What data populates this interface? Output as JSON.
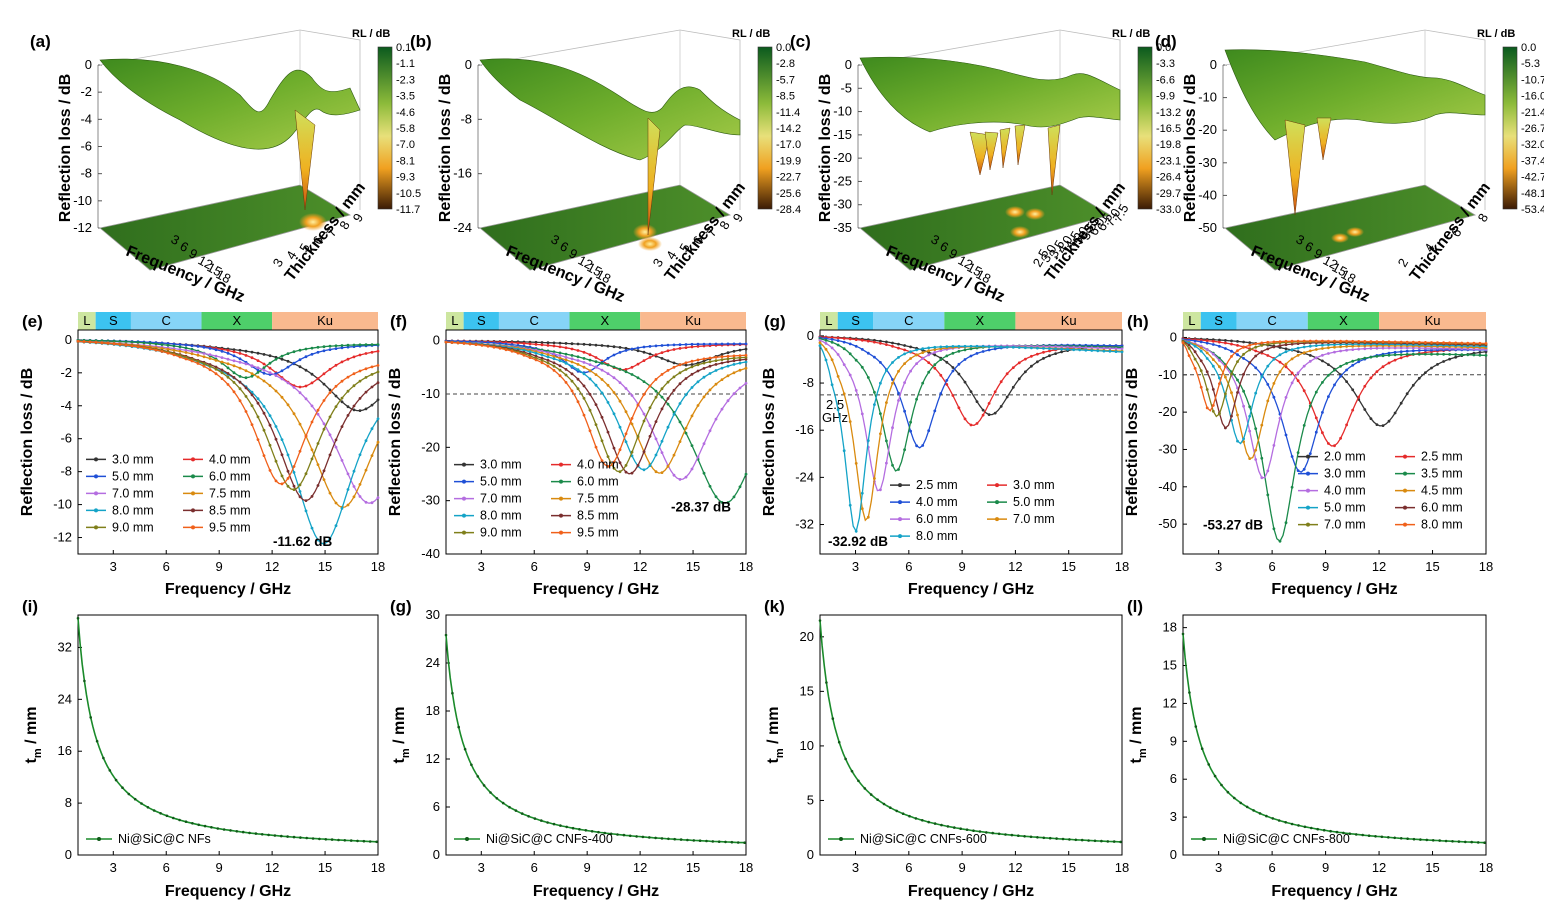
{
  "chart_data": [
    {
      "panel": "(a)",
      "type": "surface3d",
      "zlabel": "Reflection loss / dB",
      "xlabel": "Frequency / GHz",
      "ylabel": "Thickness / mm",
      "colorbar_title": "RL / dB",
      "colorbar_ticks": [
        "0.1",
        "-1.1",
        "-2.3",
        "-3.5",
        "-4.6",
        "-5.8",
        "-7.0",
        "-8.1",
        "-9.3",
        "-10.5",
        "-11.7"
      ],
      "z_ticks": [
        "0",
        "-2",
        "-4",
        "-6",
        "-8",
        "-10",
        "-12"
      ],
      "x_ticks": [
        "3",
        "6",
        "9",
        "12",
        "15",
        "18"
      ],
      "y_ticks": [
        "3",
        "4",
        "5",
        "6",
        "7",
        "8",
        "9"
      ],
      "min_rl": -11.62
    },
    {
      "panel": "(b)",
      "type": "surface3d",
      "zlabel": "Reflection loss / dB",
      "xlabel": "Frequency / GHz",
      "ylabel": "Thickness / mm",
      "colorbar_title": "RL / dB",
      "colorbar_ticks": [
        "0.0",
        "-2.8",
        "-5.7",
        "-8.5",
        "-11.4",
        "-14.2",
        "-17.0",
        "-19.9",
        "-22.7",
        "-25.6",
        "-28.4"
      ],
      "z_ticks": [
        "0",
        "-8",
        "-16",
        "-24"
      ],
      "x_ticks": [
        "3",
        "6",
        "9",
        "12",
        "15",
        "18"
      ],
      "y_ticks": [
        "3",
        "4",
        "5",
        "6",
        "7",
        "8",
        "9"
      ],
      "min_rl": -28.37
    },
    {
      "panel": "(c)",
      "type": "surface3d",
      "zlabel": "Reflection loss / dB",
      "xlabel": "Frequency / GHz",
      "ylabel": "Thickness / mm",
      "colorbar_title": "RL / dB",
      "colorbar_ticks": [
        "0.0",
        "-3.3",
        "-6.6",
        "-9.9",
        "-13.2",
        "-16.5",
        "-19.8",
        "-23.1",
        "-26.4",
        "-29.7",
        "-33.0"
      ],
      "z_ticks": [
        "0",
        "-5",
        "-10",
        "-15",
        "-20",
        "-25",
        "-30",
        "-35"
      ],
      "x_ticks": [
        "3",
        "6",
        "9",
        "12",
        "15",
        "18"
      ],
      "y_ticks": [
        "2.5",
        "3.0",
        "3.5",
        "4.0",
        "4.5",
        "5.0",
        "5.5",
        "6.0",
        "6.5",
        "7.0",
        "7.5"
      ],
      "min_rl": -32.92
    },
    {
      "panel": "(d)",
      "type": "surface3d",
      "zlabel": "Reflection loss / dB",
      "xlabel": "Frequency / GHz",
      "ylabel": "Thickness / mm",
      "colorbar_title": "RL / dB",
      "colorbar_ticks": [
        "0.0",
        "-5.3",
        "-10.7",
        "-16.0",
        "-21.4",
        "-26.7",
        "-32.0",
        "-37.4",
        "-42.7",
        "-48.1",
        "-53.4"
      ],
      "z_ticks": [
        "0",
        "-10",
        "-20",
        "-30",
        "-40",
        "-50"
      ],
      "x_ticks": [
        "3",
        "6",
        "9",
        "12",
        "15",
        "18"
      ],
      "y_ticks": [
        "2",
        "4",
        "6",
        "8"
      ],
      "min_rl": -53.27
    },
    {
      "panel": "(e)",
      "type": "line",
      "xlabel": "Frequency / GHz",
      "ylabel": "Reflection loss / dB",
      "xlim": [
        1,
        18
      ],
      "ylim": [
        -13,
        0.6
      ],
      "xticks": [
        3,
        6,
        9,
        12,
        15,
        18
      ],
      "yticks": [
        0,
        -2,
        -4,
        -6,
        -8,
        -10,
        -12
      ],
      "bands": [
        "L",
        "S",
        "C",
        "X",
        "Ku"
      ],
      "annotation": "-11.62 dB",
      "series": [
        {
          "name": "3.0 mm",
          "f0": 16.9,
          "depth": 4.0
        },
        {
          "name": "4.0 mm",
          "f0": 13.6,
          "depth": 2.7
        },
        {
          "name": "5.0 mm",
          "f0": 11.9,
          "depth": 2.0
        },
        {
          "name": "6.0 mm",
          "f0": 10.5,
          "depth": 2.2
        },
        {
          "name": "7.0 mm",
          "f0": 17.5,
          "depth": 9.2
        },
        {
          "name": "7.5 mm",
          "f0": 16.0,
          "depth": 9.5
        },
        {
          "name": "8.0 mm",
          "f0": 14.9,
          "depth": 11.62
        },
        {
          "name": "8.5 mm",
          "f0": 13.9,
          "depth": 9.2
        },
        {
          "name": "9.0 mm",
          "f0": 13.2,
          "depth": 8.6
        },
        {
          "name": "9.5 mm",
          "f0": 12.5,
          "depth": 8.3
        }
      ]
    },
    {
      "panel": "(f)",
      "type": "line",
      "xlabel": "Frequency / GHz",
      "ylabel": "Reflection loss / dB",
      "xlim": [
        1,
        18
      ],
      "ylim": [
        -40,
        2
      ],
      "xticks": [
        3,
        6,
        9,
        12,
        15,
        18
      ],
      "yticks": [
        0,
        -10,
        -20,
        -30,
        -40
      ],
      "bands": [
        "L",
        "S",
        "C",
        "X",
        "Ku"
      ],
      "annotation": "-28.37 dB",
      "series": [
        {
          "name": "3.0 mm",
          "f0": 14.6,
          "depth": 4.3
        },
        {
          "name": "4.0 mm",
          "f0": 11.0,
          "depth": 5.2
        },
        {
          "name": "5.0 mm",
          "f0": 8.8,
          "depth": 5.8
        },
        {
          "name": "6.0 mm",
          "f0": 16.8,
          "depth": 28.37
        },
        {
          "name": "7.0 mm",
          "f0": 14.3,
          "depth": 24.5
        },
        {
          "name": "7.5 mm",
          "f0": 13.1,
          "depth": 23.5
        },
        {
          "name": "8.0 mm",
          "f0": 12.2,
          "depth": 23.0
        },
        {
          "name": "8.5 mm",
          "f0": 11.4,
          "depth": 23.8
        },
        {
          "name": "9.0 mm",
          "f0": 10.8,
          "depth": 23.5
        },
        {
          "name": "9.5 mm",
          "f0": 10.2,
          "depth": 22.6
        }
      ]
    },
    {
      "panel": "(g)",
      "type": "line",
      "xlabel": "Frequency / GHz",
      "ylabel": "Reflection loss / dB",
      "xlim": [
        1,
        18
      ],
      "ylim": [
        -37,
        1
      ],
      "xticks": [
        3,
        6,
        9,
        12,
        15,
        18
      ],
      "yticks": [
        0,
        -8,
        -16,
        -24,
        -32
      ],
      "bands": [
        "L",
        "S",
        "C",
        "X",
        "Ku"
      ],
      "annotation": "-32.92 dB",
      "annotation2": [
        "2.5",
        "GHz"
      ],
      "series": [
        {
          "name": "2.5 mm",
          "f0": 10.6,
          "depth": 12.8
        },
        {
          "name": "3.0 mm",
          "f0": 9.6,
          "depth": 14.6
        },
        {
          "name": "4.0 mm",
          "f0": 6.6,
          "depth": 18.5
        },
        {
          "name": "5.0 mm",
          "f0": 5.3,
          "depth": 22.5
        },
        {
          "name": "6.0 mm",
          "f0": 4.3,
          "depth": 26.0
        },
        {
          "name": "7.0 mm",
          "f0": 3.6,
          "depth": 31.0
        },
        {
          "name": "8.0 mm",
          "f0": 3.0,
          "depth": 32.92
        }
      ]
    },
    {
      "panel": "(h)",
      "type": "line",
      "xlabel": "Frequency / GHz",
      "ylabel": "Reflection loss / dB",
      "xlim": [
        1,
        18
      ],
      "ylim": [
        -58,
        2
      ],
      "xticks": [
        3,
        6,
        9,
        12,
        15,
        18
      ],
      "yticks": [
        0,
        -10,
        -20,
        -30,
        -40,
        -50
      ],
      "bands": [
        "L",
        "S",
        "C",
        "X",
        "Ku"
      ],
      "annotation": "-53.27 dB",
      "series": [
        {
          "name": "2.0 mm",
          "f0": 12.1,
          "depth": 22.5
        },
        {
          "name": "2.5 mm",
          "f0": 9.4,
          "depth": 28.0
        },
        {
          "name": "3.0 mm",
          "f0": 7.6,
          "depth": 35.0
        },
        {
          "name": "3.5 mm",
          "f0": 6.4,
          "depth": 53.27
        },
        {
          "name": "4.0 mm",
          "f0": 5.5,
          "depth": 37.0
        },
        {
          "name": "4.5 mm",
          "f0": 4.8,
          "depth": 32.0
        },
        {
          "name": "5.0 mm",
          "f0": 4.2,
          "depth": 28.0
        },
        {
          "name": "6.0 mm",
          "f0": 3.4,
          "depth": 24.0
        },
        {
          "name": "7.0 mm",
          "f0": 2.9,
          "depth": 21.0
        },
        {
          "name": "8.0 mm",
          "f0": 2.5,
          "depth": 19.5
        }
      ]
    },
    {
      "panel": "(i)",
      "type": "line",
      "xlabel": "Frequency / GHz",
      "ylabel_main": "t",
      "ylabel_sub": "m",
      "ylabel_rest": " / mm",
      "xlim": [
        1,
        18
      ],
      "ylim": [
        0,
        37
      ],
      "xticks": [
        3,
        6,
        9,
        12,
        15,
        18
      ],
      "yticks": [
        0,
        8,
        16,
        24,
        32
      ],
      "series": [
        {
          "name": "Ni@SiC@C NFs",
          "quarter_wave_constant": 36.5
        }
      ]
    },
    {
      "panel": "(g)",
      "type": "line",
      "xlabel": "Frequency / GHz",
      "ylabel_main": "t",
      "ylabel_sub": "m",
      "ylabel_rest": " / mm",
      "xlim": [
        1,
        18
      ],
      "ylim": [
        0,
        30
      ],
      "xticks": [
        3,
        6,
        9,
        12,
        15,
        18
      ],
      "yticks": [
        0,
        6,
        12,
        18,
        24,
        30
      ],
      "series": [
        {
          "name": "Ni@SiC@C CNFs-400",
          "quarter_wave_constant": 27.5
        }
      ]
    },
    {
      "panel": "(k)",
      "type": "line",
      "xlabel": "Frequency / GHz",
      "ylabel_main": "t",
      "ylabel_sub": "m",
      "ylabel_rest": " / mm",
      "xlim": [
        1,
        18
      ],
      "ylim": [
        0,
        22
      ],
      "xticks": [
        3,
        6,
        9,
        12,
        15,
        18
      ],
      "yticks": [
        0,
        5,
        10,
        15,
        20
      ],
      "series": [
        {
          "name": "Ni@SiC@C CNFs-600",
          "quarter_wave_constant": 21.5
        }
      ]
    },
    {
      "panel": "(l)",
      "type": "line",
      "xlabel": "Frequency / GHz",
      "ylabel_main": "t",
      "ylabel_sub": "m",
      "ylabel_rest": " / mm",
      "xlim": [
        1,
        18
      ],
      "ylim": [
        0,
        19
      ],
      "xticks": [
        3,
        6,
        9,
        12,
        15,
        18
      ],
      "yticks": [
        0,
        3,
        6,
        9,
        12,
        15,
        18
      ],
      "series": [
        {
          "name": "Ni@SiC@C CNFs-800",
          "quarter_wave_constant": 17.5
        }
      ]
    }
  ],
  "colors": {
    "series10": [
      "#333333",
      "#e52b2b",
      "#1f4fd6",
      "#1a8a4a",
      "#b46de0",
      "#d98a0f",
      "#14a3c7",
      "#7a2e2e",
      "#7f7f1a",
      "#f0601a"
    ],
    "series7": [
      "#333333",
      "#e52b2b",
      "#1f4fd6",
      "#1a8a4a",
      "#b46de0",
      "#d98a0f",
      "#14a3c7"
    ],
    "bands": [
      "#cde6a0",
      "#3cc3f0",
      "#86d4f7",
      "#4ecf6a",
      "#f9b98f"
    ],
    "tm_line": "#1a8a2a",
    "surface_high": "#1a6b1a",
    "surface_mid": "#c9d93f",
    "surface_low": "#3b1a05"
  }
}
